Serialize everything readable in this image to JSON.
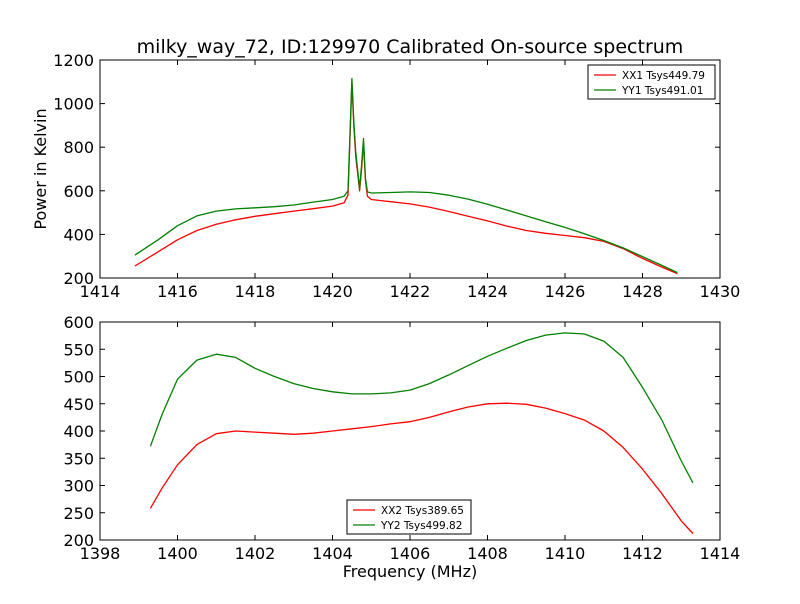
{
  "figure": {
    "title": "milky_way_72, ID:129970 Calibrated On-source spectrum"
  },
  "chart_data": [
    {
      "type": "line",
      "title": "milky_way_72, ID:129970 Calibrated On-source spectrum",
      "xlabel": "",
      "ylabel": "Power in Kelvin",
      "xlim": [
        1414,
        1430
      ],
      "ylim": [
        200,
        1200
      ],
      "xticks": [
        1414,
        1416,
        1418,
        1420,
        1422,
        1424,
        1426,
        1428,
        1430
      ],
      "yticks": [
        200,
        400,
        600,
        800,
        1000,
        1200
      ],
      "grid": false,
      "legend": "top-right",
      "series": [
        {
          "name": "XX1 Tsys449.79",
          "color": "#ff0000",
          "x": [
            1414.9,
            1415.5,
            1416.0,
            1416.5,
            1417.0,
            1417.5,
            1418.0,
            1418.5,
            1419.0,
            1419.5,
            1420.0,
            1420.3,
            1420.4,
            1420.5,
            1420.55,
            1420.6,
            1420.7,
            1420.75,
            1420.8,
            1420.85,
            1420.9,
            1421.0,
            1421.5,
            1422.0,
            1422.5,
            1423.0,
            1423.5,
            1424.0,
            1424.5,
            1425.0,
            1425.5,
            1426.0,
            1426.5,
            1427.0,
            1427.5,
            1428.0,
            1428.5,
            1428.9
          ],
          "y": [
            255,
            320,
            375,
            418,
            447,
            467,
            483,
            495,
            507,
            518,
            530,
            545,
            580,
            1095,
            900,
            760,
            600,
            700,
            820,
            650,
            575,
            560,
            550,
            540,
            525,
            505,
            483,
            462,
            438,
            418,
            405,
            395,
            385,
            368,
            335,
            290,
            250,
            220
          ]
        },
        {
          "name": "YY1 Tsys491.01",
          "color": "#008000",
          "x": [
            1414.9,
            1415.5,
            1416.0,
            1416.5,
            1417.0,
            1417.5,
            1418.0,
            1418.5,
            1419.0,
            1419.5,
            1420.0,
            1420.3,
            1420.4,
            1420.5,
            1420.55,
            1420.6,
            1420.7,
            1420.75,
            1420.8,
            1420.85,
            1420.9,
            1421.0,
            1421.5,
            1422.0,
            1422.5,
            1423.0,
            1423.5,
            1424.0,
            1424.5,
            1425.0,
            1425.5,
            1426.0,
            1426.5,
            1427.0,
            1427.5,
            1428.0,
            1428.5,
            1428.9
          ],
          "y": [
            305,
            375,
            440,
            485,
            507,
            517,
            522,
            527,
            535,
            548,
            560,
            575,
            600,
            1115,
            920,
            780,
            610,
            720,
            840,
            660,
            595,
            590,
            592,
            595,
            592,
            580,
            562,
            538,
            512,
            485,
            458,
            432,
            403,
            372,
            338,
            298,
            258,
            225
          ]
        }
      ]
    },
    {
      "type": "line",
      "title": "",
      "xlabel": "Frequency (MHz)",
      "ylabel": "",
      "xlim": [
        1398,
        1414
      ],
      "ylim": [
        200,
        600
      ],
      "xticks": [
        1398,
        1400,
        1402,
        1404,
        1406,
        1408,
        1410,
        1412,
        1414
      ],
      "yticks": [
        200,
        250,
        300,
        350,
        400,
        450,
        500,
        550,
        600
      ],
      "grid": false,
      "legend": "bottom-center",
      "series": [
        {
          "name": "XX2 Tsys389.65",
          "color": "#ff0000",
          "x": [
            1399.3,
            1399.6,
            1400.0,
            1400.5,
            1401.0,
            1401.5,
            1402.0,
            1402.5,
            1403.0,
            1403.5,
            1404.0,
            1404.5,
            1405.0,
            1405.5,
            1406.0,
            1406.5,
            1407.0,
            1407.5,
            1408.0,
            1408.5,
            1409.0,
            1409.5,
            1410.0,
            1410.5,
            1411.0,
            1411.5,
            1412.0,
            1412.5,
            1413.0,
            1413.3
          ],
          "y": [
            258,
            295,
            338,
            375,
            395,
            400,
            398,
            396,
            394,
            396,
            400,
            404,
            408,
            413,
            417,
            425,
            435,
            444,
            450,
            451,
            449,
            442,
            432,
            420,
            400,
            370,
            330,
            285,
            235,
            212
          ]
        },
        {
          "name": "YY2 Tsys499.82",
          "color": "#008000",
          "x": [
            1399.3,
            1399.6,
            1400.0,
            1400.5,
            1401.0,
            1401.5,
            1402.0,
            1402.5,
            1403.0,
            1403.5,
            1404.0,
            1404.5,
            1405.0,
            1405.5,
            1406.0,
            1406.5,
            1407.0,
            1407.5,
            1408.0,
            1408.5,
            1409.0,
            1409.5,
            1410.0,
            1410.5,
            1411.0,
            1411.5,
            1412.0,
            1412.5,
            1413.0,
            1413.3
          ],
          "y": [
            372,
            430,
            495,
            530,
            541,
            535,
            515,
            500,
            487,
            478,
            472,
            468,
            468,
            470,
            475,
            487,
            503,
            520,
            537,
            552,
            566,
            576,
            580,
            578,
            565,
            535,
            480,
            420,
            345,
            305
          ]
        }
      ]
    }
  ]
}
